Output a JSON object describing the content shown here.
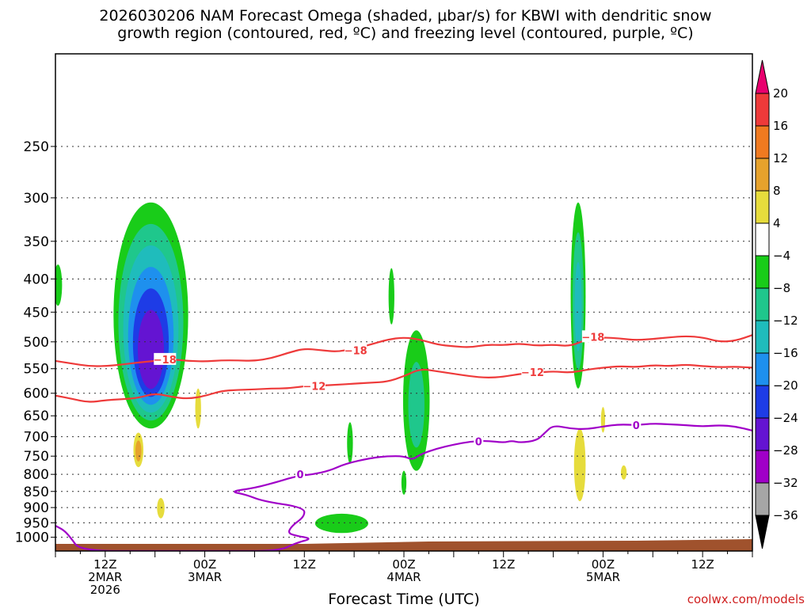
{
  "chart_data": {
    "type": "heatmap",
    "title": "2026030206 NAM Forecast Omega (shaded, μbar/s) for KBWI with dendritic snow",
    "subtitle": "growth region (contoured, red, ºC) and freezing level (contoured, purple, ºC)",
    "xlabel": "Forecast Time (UTC)",
    "ylabel": "",
    "credit": "coolwx.com/models",
    "x_range_hours": [
      0,
      84
    ],
    "y_axis": {
      "scale": "log",
      "range": [
        1050,
        180
      ],
      "ticks": [
        250,
        300,
        350,
        400,
        450,
        500,
        550,
        600,
        650,
        700,
        750,
        800,
        850,
        900,
        950,
        1000
      ],
      "grid": true
    },
    "x_ticks": [
      {
        "hour": 6,
        "lines": [
          "12Z",
          "2MAR",
          "2026"
        ]
      },
      {
        "hour": 18,
        "lines": [
          "00Z",
          "3MAR"
        ]
      },
      {
        "hour": 30,
        "lines": [
          "12Z"
        ]
      },
      {
        "hour": 42,
        "lines": [
          "00Z",
          "4MAR"
        ]
      },
      {
        "hour": 54,
        "lines": [
          "12Z"
        ]
      },
      {
        "hour": 66,
        "lines": [
          "00Z",
          "5MAR"
        ]
      },
      {
        "hour": 78,
        "lines": [
          "12Z"
        ]
      }
    ],
    "colorbar": {
      "labels": [
        "20",
        "16",
        "12",
        "8",
        "4",
        "−4",
        "−8",
        "−12",
        "−16",
        "−20",
        "−24",
        "−28",
        "−32",
        "−36"
      ],
      "bins": [
        {
          "lo": 20,
          "hi": 99,
          "color": "#e8006e"
        },
        {
          "lo": 16,
          "hi": 20,
          "color": "#ee3a3a"
        },
        {
          "lo": 12,
          "hi": 16,
          "color": "#f07a20"
        },
        {
          "lo": 8,
          "hi": 12,
          "color": "#e6a22c"
        },
        {
          "lo": 4,
          "hi": 8,
          "color": "#e6dc3c"
        },
        {
          "lo": -4,
          "hi": 4,
          "color": "#ffffff"
        },
        {
          "lo": -8,
          "hi": -4,
          "color": "#19cc19"
        },
        {
          "lo": -12,
          "hi": -8,
          "color": "#1fc78c"
        },
        {
          "lo": -16,
          "hi": -12,
          "color": "#1fbcbc"
        },
        {
          "lo": -20,
          "hi": -16,
          "color": "#1e90ee"
        },
        {
          "lo": -24,
          "hi": -20,
          "color": "#1e3ce6"
        },
        {
          "lo": -28,
          "hi": -24,
          "color": "#6414d2"
        },
        {
          "lo": -32,
          "hi": -28,
          "color": "#a000c8"
        },
        {
          "lo": -36,
          "hi": -32,
          "color": "#a6a6a6"
        },
        {
          "lo": -99,
          "hi": -36,
          "color": "#000000"
        }
      ]
    },
    "omega_features": [
      {
        "hour": 11.5,
        "p_top": 305,
        "p_bot": 680,
        "half_width_h": 4.5,
        "layers": [
          "#19cc19",
          "#1fc78c",
          "#1fbcbc",
          "#1e90ee",
          "#1e3ce6",
          "#6414d2"
        ]
      },
      {
        "hour": 40.5,
        "p_top": 385,
        "p_bot": 470,
        "half_width_h": 0.35,
        "layers": [
          "#19cc19"
        ]
      },
      {
        "hour": 43.5,
        "p_top": 480,
        "p_bot": 790,
        "half_width_h": 1.6,
        "layers": [
          "#19cc19",
          "#1fc78c"
        ]
      },
      {
        "hour": 34.5,
        "p_top": 920,
        "p_bot": 985,
        "half_width_h": 3.2,
        "layers": [
          "#19cc19"
        ]
      },
      {
        "hour": 35.5,
        "p_top": 665,
        "p_bot": 770,
        "half_width_h": 0.35,
        "layers": [
          "#19cc19"
        ]
      },
      {
        "hour": 42.0,
        "p_top": 790,
        "p_bot": 860,
        "half_width_h": 0.3,
        "layers": [
          "#19cc19"
        ]
      },
      {
        "hour": 63.0,
        "p_top": 305,
        "p_bot": 590,
        "half_width_h": 0.9,
        "layers": [
          "#19cc19",
          "#1fc78c",
          "#1fbcbc"
        ]
      },
      {
        "hour": 0.3,
        "p_top": 380,
        "p_bot": 440,
        "half_width_h": 0.5,
        "layers": [
          "#19cc19"
        ]
      }
    ],
    "ascent_features": [
      {
        "hour": 10.0,
        "p_top": 690,
        "p_bot": 780,
        "half_width_h": 0.6,
        "layers": [
          "#e6dc3c",
          "#e6a22c"
        ]
      },
      {
        "hour": 12.7,
        "p_top": 870,
        "p_bot": 935,
        "half_width_h": 0.45,
        "layers": [
          "#e6dc3c"
        ]
      },
      {
        "hour": 17.2,
        "p_top": 590,
        "p_bot": 680,
        "half_width_h": 0.35,
        "layers": [
          "#e6dc3c"
        ]
      },
      {
        "hour": 63.2,
        "p_top": 680,
        "p_bot": 880,
        "half_width_h": 0.7,
        "layers": [
          "#e6dc3c"
        ]
      },
      {
        "hour": 66.0,
        "p_top": 630,
        "p_bot": 690,
        "half_width_h": 0.25,
        "layers": [
          "#e6dc3c"
        ]
      },
      {
        "hour": 68.5,
        "p_top": 775,
        "p_bot": 815,
        "half_width_h": 0.35,
        "layers": [
          "#e6dc3c"
        ]
      }
    ],
    "series": [
      {
        "contour": "-18",
        "color": "#ee3a3a",
        "x": [
          0,
          2,
          4,
          6,
          8,
          10,
          12,
          14,
          16,
          18,
          20,
          22,
          24,
          26,
          28,
          30,
          32,
          34,
          36,
          38,
          40,
          42,
          44,
          46,
          48,
          50,
          52,
          54,
          56,
          58,
          60,
          62,
          64,
          66,
          68,
          70,
          72,
          74,
          76,
          78,
          80,
          82,
          84
        ],
        "y": [
          535,
          540,
          545,
          545,
          542,
          538,
          535,
          532,
          535,
          536,
          534,
          534,
          535,
          530,
          520,
          512,
          515,
          518,
          512,
          505,
          496,
          492,
          496,
          505,
          508,
          510,
          505,
          506,
          503,
          507,
          505,
          508,
          496,
          492,
          494,
          497,
          495,
          492,
          490,
          492,
          500,
          498,
          488
        ]
      },
      {
        "contour": "-12",
        "color": "#ee3a3a",
        "x": [
          0,
          2,
          4,
          6,
          8,
          10,
          12,
          14,
          16,
          18,
          20,
          22,
          24,
          26,
          28,
          30,
          32,
          34,
          36,
          38,
          40,
          42,
          44,
          46,
          48,
          50,
          52,
          54,
          56,
          58,
          60,
          62,
          64,
          66,
          68,
          70,
          72,
          74,
          76,
          78,
          80,
          82,
          84
        ],
        "y": [
          605,
          612,
          620,
          615,
          613,
          610,
          600,
          608,
          612,
          606,
          595,
          593,
          592,
          590,
          590,
          585,
          584,
          582,
          580,
          578,
          576,
          565,
          550,
          555,
          560,
          565,
          568,
          566,
          560,
          558,
          555,
          558,
          552,
          548,
          545,
          547,
          543,
          545,
          542,
          545,
          547,
          546,
          548
        ]
      },
      {
        "contour": "0",
        "color": "#a000c8",
        "x": [
          0,
          1.0,
          1.8,
          3,
          12,
          20,
          27,
          29,
          31,
          29,
          28,
          28.5,
          30,
          30,
          25,
          23,
          21,
          24,
          27,
          29,
          31,
          33,
          35,
          38,
          40,
          42,
          43,
          44,
          46,
          48,
          50,
          52,
          54,
          55,
          56,
          58,
          59,
          60,
          62,
          64,
          66,
          68,
          70,
          72,
          74,
          76,
          78,
          80,
          82,
          84
        ],
        "y": [
          960,
          975,
          1000,
          1050,
          1050,
          1050,
          1050,
          1020,
          1005,
          995,
          985,
          960,
          930,
          900,
          880,
          860,
          850,
          840,
          820,
          805,
          800,
          790,
          770,
          755,
          750,
          750,
          760,
          745,
          730,
          720,
          712,
          710,
          715,
          710,
          715,
          710,
          690,
          672,
          680,
          682,
          675,
          670,
          672,
          668,
          670,
          672,
          675,
          672,
          675,
          685
        ]
      }
    ],
    "contour_labels": [
      {
        "text": "−18",
        "hour": 13.2,
        "p": 532,
        "color": "#ee3a3a"
      },
      {
        "text": "−18",
        "hour": 36.2,
        "p": 515,
        "color": "#ee3a3a"
      },
      {
        "text": "−18",
        "hour": 64.8,
        "p": 491,
        "color": "#ee3a3a"
      },
      {
        "text": "−12",
        "hour": 31.2,
        "p": 585,
        "color": "#ee3a3a"
      },
      {
        "text": "−12",
        "hour": 57.5,
        "p": 557,
        "color": "#ee3a3a"
      },
      {
        "text": "0",
        "hour": 29.5,
        "p": 800,
        "color": "#a000c8"
      },
      {
        "text": "0",
        "hour": 51.0,
        "p": 712,
        "color": "#a000c8"
      },
      {
        "text": "0",
        "hour": 70.0,
        "p": 672,
        "color": "#a000c8"
      }
    ],
    "terrain_color": "#a0522d"
  }
}
